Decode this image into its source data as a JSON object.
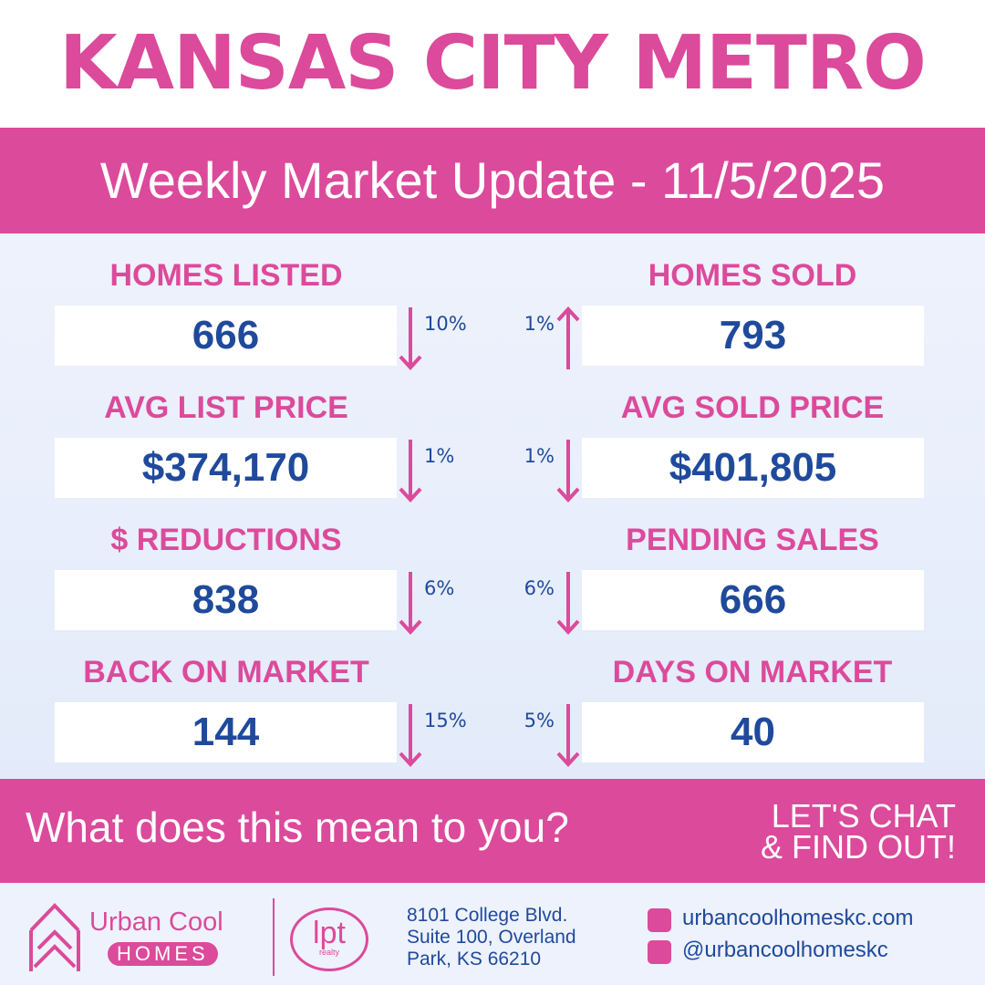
{
  "header": {
    "title": "KANSAS CITY METRO",
    "subtitle": "Weekly Market Update - 11/5/2025"
  },
  "metrics": [
    {
      "label": "HOMES LISTED",
      "value": "666",
      "change": "10%",
      "direction": "down",
      "side": "left"
    },
    {
      "label": "HOMES SOLD",
      "value": "793",
      "change": "1%",
      "direction": "up",
      "side": "right"
    },
    {
      "label": "AVG LIST PRICE",
      "value": "$374,170",
      "change": "1%",
      "direction": "down",
      "side": "left"
    },
    {
      "label": "AVG SOLD PRICE",
      "value": "$401,805",
      "change": "1%",
      "direction": "down",
      "side": "right"
    },
    {
      "label": "$ REDUCTIONS",
      "value": "838",
      "change": "6%",
      "direction": "down",
      "side": "left"
    },
    {
      "label": "PENDING SALES",
      "value": "666",
      "change": "6%",
      "direction": "down",
      "side": "right"
    },
    {
      "label": "BACK ON MARKET",
      "value": "144",
      "change": "15%",
      "direction": "down",
      "side": "left"
    },
    {
      "label": "DAYS ON MARKET",
      "value": "40",
      "change": "5%",
      "direction": "down",
      "side": "right"
    }
  ],
  "cta": {
    "question": "What does this mean to you?",
    "line1": "LET'S CHAT",
    "line2": "& FIND OUT!"
  },
  "footer": {
    "brand": "Urban Cool",
    "brand_sub": "HOMES",
    "partner": "lpt",
    "partner_sub": "realty",
    "address": [
      "8101 College Blvd.",
      "Suite 100, Overland",
      "Park, KS 66210"
    ],
    "website": "urbancoolhomeskc.com",
    "handle": "@urbancoolhomeskc"
  }
}
